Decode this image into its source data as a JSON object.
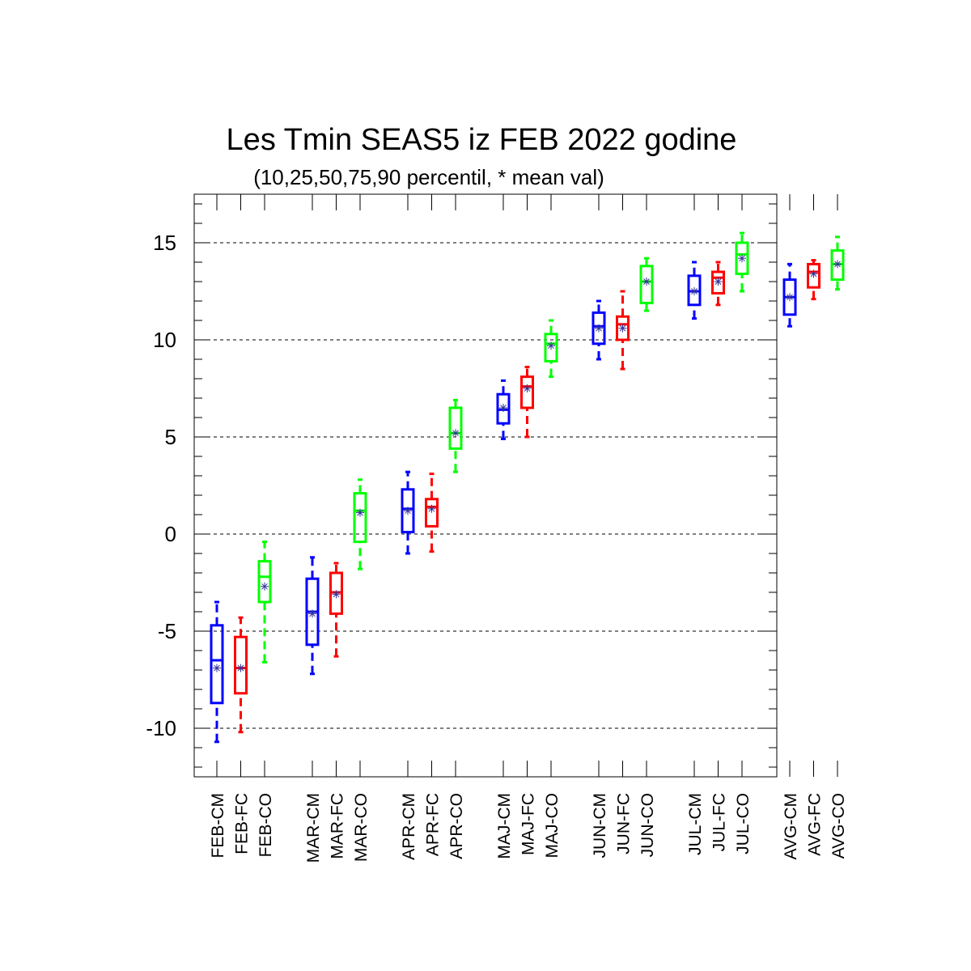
{
  "chart_data": {
    "type": "boxplot",
    "title": "Les Tmin SEAS5 iz FEB 2022 godine",
    "subtitle": "(10,25,50,75,90 percentil, * mean val)",
    "xlabel": "",
    "ylabel": "",
    "ylim": [
      -12.5,
      17.5
    ],
    "yticks": [
      -10,
      -5,
      0,
      5,
      10,
      15
    ],
    "ytick_labels": [
      "-10",
      "-5",
      "0",
      "5",
      "10",
      "15"
    ],
    "grid": "horizontal dashed at major ticks",
    "colors": {
      "CM": "#0000ff",
      "FC": "#ff0000",
      "CO": "#00ff00"
    },
    "groups": [
      "FEB",
      "MAR",
      "APR",
      "MAJ",
      "JUN",
      "JUL",
      "AVG"
    ],
    "boxes": [
      {
        "label": "FEB-CM",
        "kind": "CM",
        "p10": -10.7,
        "p25": -8.7,
        "p50": -6.5,
        "p75": -4.7,
        "p90": -3.5,
        "mean": -6.9
      },
      {
        "label": "FEB-FC",
        "kind": "FC",
        "p10": -10.2,
        "p25": -8.2,
        "p50": -6.9,
        "p75": -5.3,
        "p90": -4.3,
        "mean": -6.9
      },
      {
        "label": "FEB-CO",
        "kind": "CO",
        "p10": -6.6,
        "p25": -3.5,
        "p50": -2.2,
        "p75": -1.4,
        "p90": -0.4,
        "mean": -2.7
      },
      {
        "label": "MAR-CM",
        "kind": "CM",
        "p10": -7.2,
        "p25": -5.7,
        "p50": -4.0,
        "p75": -2.3,
        "p90": -1.2,
        "mean": -4.1
      },
      {
        "label": "MAR-FC",
        "kind": "FC",
        "p10": -6.3,
        "p25": -4.1,
        "p50": -3.0,
        "p75": -2.0,
        "p90": -1.5,
        "mean": -3.1
      },
      {
        "label": "MAR-CO",
        "kind": "CO",
        "p10": -1.8,
        "p25": -0.4,
        "p50": 1.2,
        "p75": 2.1,
        "p90": 2.8,
        "mean": 1.1
      },
      {
        "label": "APR-CM",
        "kind": "CM",
        "p10": -1.0,
        "p25": 0.1,
        "p50": 1.3,
        "p75": 2.3,
        "p90": 3.2,
        "mean": 1.2
      },
      {
        "label": "APR-FC",
        "kind": "FC",
        "p10": -0.9,
        "p25": 0.4,
        "p50": 1.4,
        "p75": 1.8,
        "p90": 3.1,
        "mean": 1.3
      },
      {
        "label": "APR-CO",
        "kind": "CO",
        "p10": 3.2,
        "p25": 4.4,
        "p50": 5.2,
        "p75": 6.5,
        "p90": 6.9,
        "mean": 5.2
      },
      {
        "label": "MAJ-CM",
        "kind": "CM",
        "p10": 4.9,
        "p25": 5.7,
        "p50": 6.4,
        "p75": 7.2,
        "p90": 7.9,
        "mean": 6.5
      },
      {
        "label": "MAJ-FC",
        "kind": "FC",
        "p10": 5.0,
        "p25": 6.5,
        "p50": 7.6,
        "p75": 8.1,
        "p90": 8.6,
        "mean": 7.5
      },
      {
        "label": "MAJ-CO",
        "kind": "CO",
        "p10": 8.1,
        "p25": 8.9,
        "p50": 9.8,
        "p75": 10.3,
        "p90": 11.0,
        "mean": 9.7
      },
      {
        "label": "JUN-CM",
        "kind": "CM",
        "p10": 9.0,
        "p25": 9.8,
        "p50": 10.7,
        "p75": 11.4,
        "p90": 12.0,
        "mean": 10.6
      },
      {
        "label": "JUN-FC",
        "kind": "FC",
        "p10": 8.5,
        "p25": 10.0,
        "p50": 10.8,
        "p75": 11.2,
        "p90": 12.5,
        "mean": 10.6
      },
      {
        "label": "JUN-CO",
        "kind": "CO",
        "p10": 11.5,
        "p25": 11.9,
        "p50": 13.0,
        "p75": 13.8,
        "p90": 14.2,
        "mean": 13.0
      },
      {
        "label": "JUL-CM",
        "kind": "CM",
        "p10": 11.1,
        "p25": 11.8,
        "p50": 12.5,
        "p75": 13.3,
        "p90": 14.0,
        "mean": 12.5
      },
      {
        "label": "JUL-FC",
        "kind": "FC",
        "p10": 11.8,
        "p25": 12.4,
        "p50": 13.2,
        "p75": 13.5,
        "p90": 14.0,
        "mean": 13.0
      },
      {
        "label": "JUL-CO",
        "kind": "CO",
        "p10": 12.5,
        "p25": 13.4,
        "p50": 14.4,
        "p75": 15.0,
        "p90": 15.5,
        "mean": 14.2
      },
      {
        "label": "AVG-CM",
        "kind": "CM",
        "p10": 10.7,
        "p25": 11.3,
        "p50": 12.2,
        "p75": 13.1,
        "p90": 13.9,
        "mean": 12.2
      },
      {
        "label": "AVG-FC",
        "kind": "FC",
        "p10": 12.1,
        "p25": 12.7,
        "p50": 13.5,
        "p75": 13.9,
        "p90": 14.1,
        "mean": 13.4
      },
      {
        "label": "AVG-CO",
        "kind": "CO",
        "p10": 12.6,
        "p25": 13.1,
        "p50": 13.9,
        "p75": 14.6,
        "p90": 15.3,
        "mean": 13.9
      }
    ]
  }
}
